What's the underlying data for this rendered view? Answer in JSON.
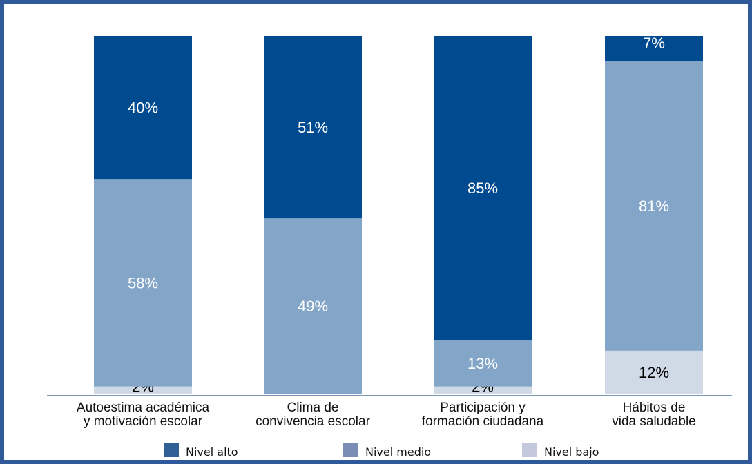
{
  "chart_data": {
    "type": "bar",
    "stacked": true,
    "orientation": "vertical",
    "normalized_percent": true,
    "categories": [
      [
        "Autoestima académica",
        "y motivación escolar"
      ],
      [
        "Clima de",
        "convivencia escolar"
      ],
      [
        "Participación y",
        "formación ciudadana"
      ],
      [
        "Hábitos de",
        "vida saludable"
      ]
    ],
    "series": [
      {
        "name": "Nivel bajo",
        "values": [
          2,
          0,
          2,
          12
        ],
        "labels": [
          "2%",
          "",
          "2%",
          "12%"
        ],
        "color": "#d0dae6",
        "label_color": "#000000"
      },
      {
        "name": "Nivel medio",
        "values": [
          58,
          49,
          13,
          81
        ],
        "labels": [
          "58%",
          "49%",
          "13%",
          "81%"
        ],
        "color": "#82a5c8",
        "label_color": "#ffffff"
      },
      {
        "name": "Nivel alto",
        "values": [
          40,
          51,
          85,
          7
        ],
        "labels": [
          "40%",
          "51%",
          "85%",
          "7%"
        ],
        "color": "#004a8f",
        "label_color": "#ffffff"
      }
    ],
    "legend": {
      "position": "bottom",
      "items": [
        {
          "name": "Nivel alto",
          "color": "#2f5f95"
        },
        {
          "name": "Nivel medio",
          "color": "#7a8db5"
        },
        {
          "name": "Nivel bajo",
          "color": "#c4c8dc"
        }
      ]
    },
    "ylim": [
      0,
      100
    ],
    "grid": false,
    "axis_color": "#7e98b8"
  }
}
